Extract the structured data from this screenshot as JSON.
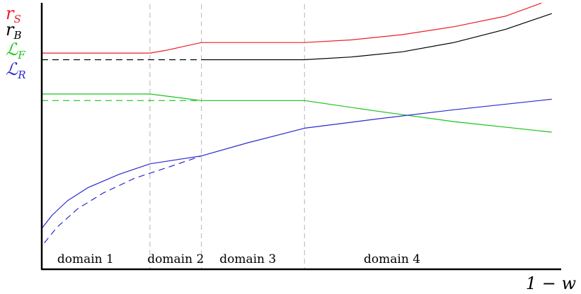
{
  "chart_data": {
    "type": "line",
    "title": "",
    "xlabel": "1 − w",
    "ylabel": "",
    "xlim": [
      0,
      10
    ],
    "ylim": [
      0,
      10
    ],
    "grid": false,
    "legend_position": "top-left",
    "domain_boundaries": [
      2.1,
      3.1,
      5.1
    ],
    "domains": [
      {
        "label": "domain 1",
        "x_center": 0.85
      },
      {
        "label": "domain 2",
        "x_center": 2.6
      },
      {
        "label": "domain 3",
        "x_center": 4.0
      },
      {
        "label": "domain 4",
        "x_center": 6.8
      }
    ],
    "legend": [
      {
        "key": "rS",
        "base": "r",
        "sub": "S",
        "color": "#e8202a"
      },
      {
        "key": "rB",
        "base": "r",
        "sub": "B",
        "color": "#000000"
      },
      {
        "key": "LF",
        "base": "ℒ",
        "sub": "F",
        "color": "#19c419"
      },
      {
        "key": "LR",
        "base": "ℒ",
        "sub": "R",
        "color": "#2a2ad0"
      }
    ],
    "series": [
      {
        "name": "rS",
        "color": "#e8202a",
        "dashed": false,
        "points": [
          [
            0,
            8.2
          ],
          [
            2.1,
            8.2
          ],
          [
            2.4,
            8.3
          ],
          [
            3.1,
            8.6
          ],
          [
            5.1,
            8.6
          ],
          [
            6,
            8.7
          ],
          [
            7,
            8.9
          ],
          [
            8,
            9.2
          ],
          [
            9,
            9.6
          ],
          [
            9.7,
            10.1
          ]
        ]
      },
      {
        "name": "rB",
        "color": "#000000",
        "dashed": false,
        "points": [
          [
            3.1,
            7.95
          ],
          [
            5.1,
            7.95
          ],
          [
            6,
            8.05
          ],
          [
            7,
            8.25
          ],
          [
            8,
            8.6
          ],
          [
            9,
            9.1
          ],
          [
            9.9,
            9.7
          ]
        ]
      },
      {
        "name": "rB-extension",
        "color": "#000000",
        "dashed": true,
        "points": [
          [
            0,
            7.95
          ],
          [
            3.1,
            7.95
          ]
        ]
      },
      {
        "name": "LF",
        "color": "#19c419",
        "dashed": false,
        "points": [
          [
            0,
            6.65
          ],
          [
            2.1,
            6.65
          ],
          [
            3.1,
            6.4
          ],
          [
            5.1,
            6.4
          ],
          [
            6.5,
            6.0
          ],
          [
            8,
            5.6
          ],
          [
            9.9,
            5.2
          ]
        ]
      },
      {
        "name": "LF-extension",
        "color": "#19c419",
        "dashed": true,
        "points": [
          [
            0,
            6.4
          ],
          [
            3.1,
            6.4
          ]
        ]
      },
      {
        "name": "LR",
        "color": "#2a2ad0",
        "dashed": false,
        "points": [
          [
            0,
            1.55
          ],
          [
            0.2,
            2.05
          ],
          [
            0.5,
            2.6
          ],
          [
            0.9,
            3.1
          ],
          [
            1.5,
            3.6
          ],
          [
            2.1,
            4.0
          ],
          [
            2.6,
            4.15
          ],
          [
            3.1,
            4.3
          ],
          [
            4,
            4.8
          ],
          [
            5.1,
            5.35
          ],
          [
            6.5,
            5.7
          ],
          [
            8,
            6.05
          ],
          [
            9.9,
            6.45
          ]
        ]
      },
      {
        "name": "LR-extension",
        "color": "#2a2ad0",
        "dashed": true,
        "points": [
          [
            0.05,
            1.0
          ],
          [
            0.3,
            1.6
          ],
          [
            0.7,
            2.3
          ],
          [
            1.2,
            2.9
          ],
          [
            1.8,
            3.45
          ],
          [
            2.5,
            3.9
          ],
          [
            3.1,
            4.3
          ]
        ]
      }
    ]
  }
}
